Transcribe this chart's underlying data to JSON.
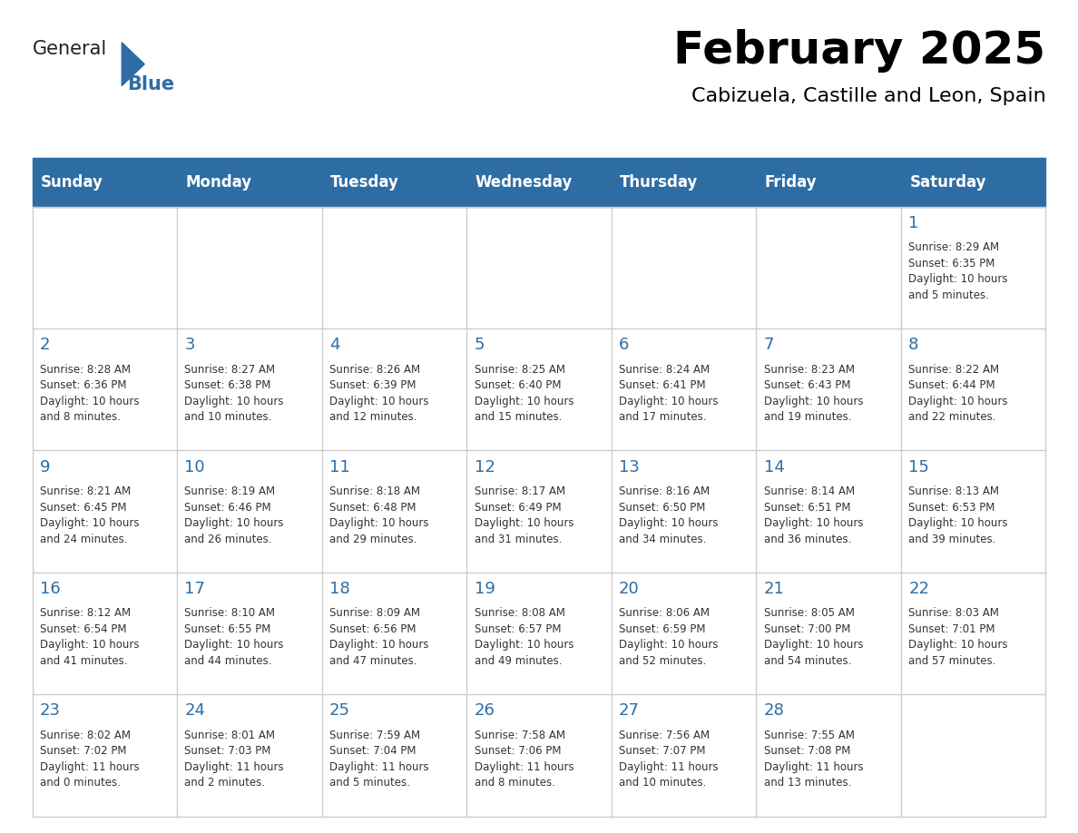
{
  "title": "February 2025",
  "subtitle": "Cabizuela, Castille and Leon, Spain",
  "header_bg": "#2E6DA4",
  "header_text_color": "#FFFFFF",
  "day_number_color": "#2E6DA4",
  "text_color": "#333333",
  "border_color": "#CCCCCC",
  "days_of_week": [
    "Sunday",
    "Monday",
    "Tuesday",
    "Wednesday",
    "Thursday",
    "Friday",
    "Saturday"
  ],
  "weeks": [
    [
      {
        "day": null,
        "info": null
      },
      {
        "day": null,
        "info": null
      },
      {
        "day": null,
        "info": null
      },
      {
        "day": null,
        "info": null
      },
      {
        "day": null,
        "info": null
      },
      {
        "day": null,
        "info": null
      },
      {
        "day": 1,
        "info": "Sunrise: 8:29 AM\nSunset: 6:35 PM\nDaylight: 10 hours\nand 5 minutes."
      }
    ],
    [
      {
        "day": 2,
        "info": "Sunrise: 8:28 AM\nSunset: 6:36 PM\nDaylight: 10 hours\nand 8 minutes."
      },
      {
        "day": 3,
        "info": "Sunrise: 8:27 AM\nSunset: 6:38 PM\nDaylight: 10 hours\nand 10 minutes."
      },
      {
        "day": 4,
        "info": "Sunrise: 8:26 AM\nSunset: 6:39 PM\nDaylight: 10 hours\nand 12 minutes."
      },
      {
        "day": 5,
        "info": "Sunrise: 8:25 AM\nSunset: 6:40 PM\nDaylight: 10 hours\nand 15 minutes."
      },
      {
        "day": 6,
        "info": "Sunrise: 8:24 AM\nSunset: 6:41 PM\nDaylight: 10 hours\nand 17 minutes."
      },
      {
        "day": 7,
        "info": "Sunrise: 8:23 AM\nSunset: 6:43 PM\nDaylight: 10 hours\nand 19 minutes."
      },
      {
        "day": 8,
        "info": "Sunrise: 8:22 AM\nSunset: 6:44 PM\nDaylight: 10 hours\nand 22 minutes."
      }
    ],
    [
      {
        "day": 9,
        "info": "Sunrise: 8:21 AM\nSunset: 6:45 PM\nDaylight: 10 hours\nand 24 minutes."
      },
      {
        "day": 10,
        "info": "Sunrise: 8:19 AM\nSunset: 6:46 PM\nDaylight: 10 hours\nand 26 minutes."
      },
      {
        "day": 11,
        "info": "Sunrise: 8:18 AM\nSunset: 6:48 PM\nDaylight: 10 hours\nand 29 minutes."
      },
      {
        "day": 12,
        "info": "Sunrise: 8:17 AM\nSunset: 6:49 PM\nDaylight: 10 hours\nand 31 minutes."
      },
      {
        "day": 13,
        "info": "Sunrise: 8:16 AM\nSunset: 6:50 PM\nDaylight: 10 hours\nand 34 minutes."
      },
      {
        "day": 14,
        "info": "Sunrise: 8:14 AM\nSunset: 6:51 PM\nDaylight: 10 hours\nand 36 minutes."
      },
      {
        "day": 15,
        "info": "Sunrise: 8:13 AM\nSunset: 6:53 PM\nDaylight: 10 hours\nand 39 minutes."
      }
    ],
    [
      {
        "day": 16,
        "info": "Sunrise: 8:12 AM\nSunset: 6:54 PM\nDaylight: 10 hours\nand 41 minutes."
      },
      {
        "day": 17,
        "info": "Sunrise: 8:10 AM\nSunset: 6:55 PM\nDaylight: 10 hours\nand 44 minutes."
      },
      {
        "day": 18,
        "info": "Sunrise: 8:09 AM\nSunset: 6:56 PM\nDaylight: 10 hours\nand 47 minutes."
      },
      {
        "day": 19,
        "info": "Sunrise: 8:08 AM\nSunset: 6:57 PM\nDaylight: 10 hours\nand 49 minutes."
      },
      {
        "day": 20,
        "info": "Sunrise: 8:06 AM\nSunset: 6:59 PM\nDaylight: 10 hours\nand 52 minutes."
      },
      {
        "day": 21,
        "info": "Sunrise: 8:05 AM\nSunset: 7:00 PM\nDaylight: 10 hours\nand 54 minutes."
      },
      {
        "day": 22,
        "info": "Sunrise: 8:03 AM\nSunset: 7:01 PM\nDaylight: 10 hours\nand 57 minutes."
      }
    ],
    [
      {
        "day": 23,
        "info": "Sunrise: 8:02 AM\nSunset: 7:02 PM\nDaylight: 11 hours\nand 0 minutes."
      },
      {
        "day": 24,
        "info": "Sunrise: 8:01 AM\nSunset: 7:03 PM\nDaylight: 11 hours\nand 2 minutes."
      },
      {
        "day": 25,
        "info": "Sunrise: 7:59 AM\nSunset: 7:04 PM\nDaylight: 11 hours\nand 5 minutes."
      },
      {
        "day": 26,
        "info": "Sunrise: 7:58 AM\nSunset: 7:06 PM\nDaylight: 11 hours\nand 8 minutes."
      },
      {
        "day": 27,
        "info": "Sunrise: 7:56 AM\nSunset: 7:07 PM\nDaylight: 11 hours\nand 10 minutes."
      },
      {
        "day": 28,
        "info": "Sunrise: 7:55 AM\nSunset: 7:08 PM\nDaylight: 11 hours\nand 13 minutes."
      },
      {
        "day": null,
        "info": null
      }
    ]
  ],
  "logo_text_general": "General",
  "logo_text_blue": "Blue",
  "logo_blue_color": "#2E6DA4"
}
